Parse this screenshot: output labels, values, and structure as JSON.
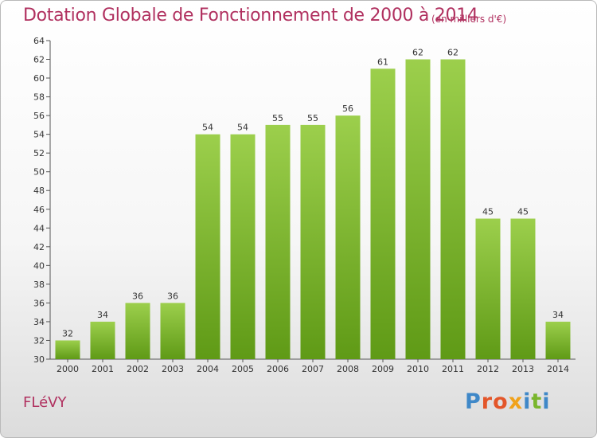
{
  "header": {
    "title": "Dotation Globale de Fonctionnement de 2000 à 2014",
    "unit_note": "(en milliers d'€)"
  },
  "footer": {
    "commune": "FLéVY",
    "brand": "Proxiti"
  },
  "colors": {
    "title": "#b0305f",
    "bar_top": "#9ccf4c",
    "bar_bottom": "#5f9a16",
    "axis": "#555555",
    "brand_letters": [
      "#3f88c8",
      "#e3562a",
      "#e3562a",
      "#f0a21b",
      "#3f88c8",
      "#7ab62d",
      "#3f88c8"
    ]
  },
  "chart_data": {
    "type": "bar",
    "categories": [
      "2000",
      "2001",
      "2002",
      "2003",
      "2004",
      "2005",
      "2006",
      "2007",
      "2008",
      "2009",
      "2010",
      "2011",
      "2012",
      "2013",
      "2014"
    ],
    "values": [
      32,
      34,
      36,
      36,
      54,
      54,
      55,
      55,
      56,
      61,
      62,
      62,
      45,
      45,
      34
    ],
    "ylim": [
      30,
      64
    ],
    "yticks": [
      30,
      32,
      34,
      36,
      38,
      40,
      42,
      44,
      46,
      48,
      50,
      52,
      54,
      56,
      58,
      60,
      62,
      64
    ],
    "grid": false,
    "data_labels": true
  }
}
